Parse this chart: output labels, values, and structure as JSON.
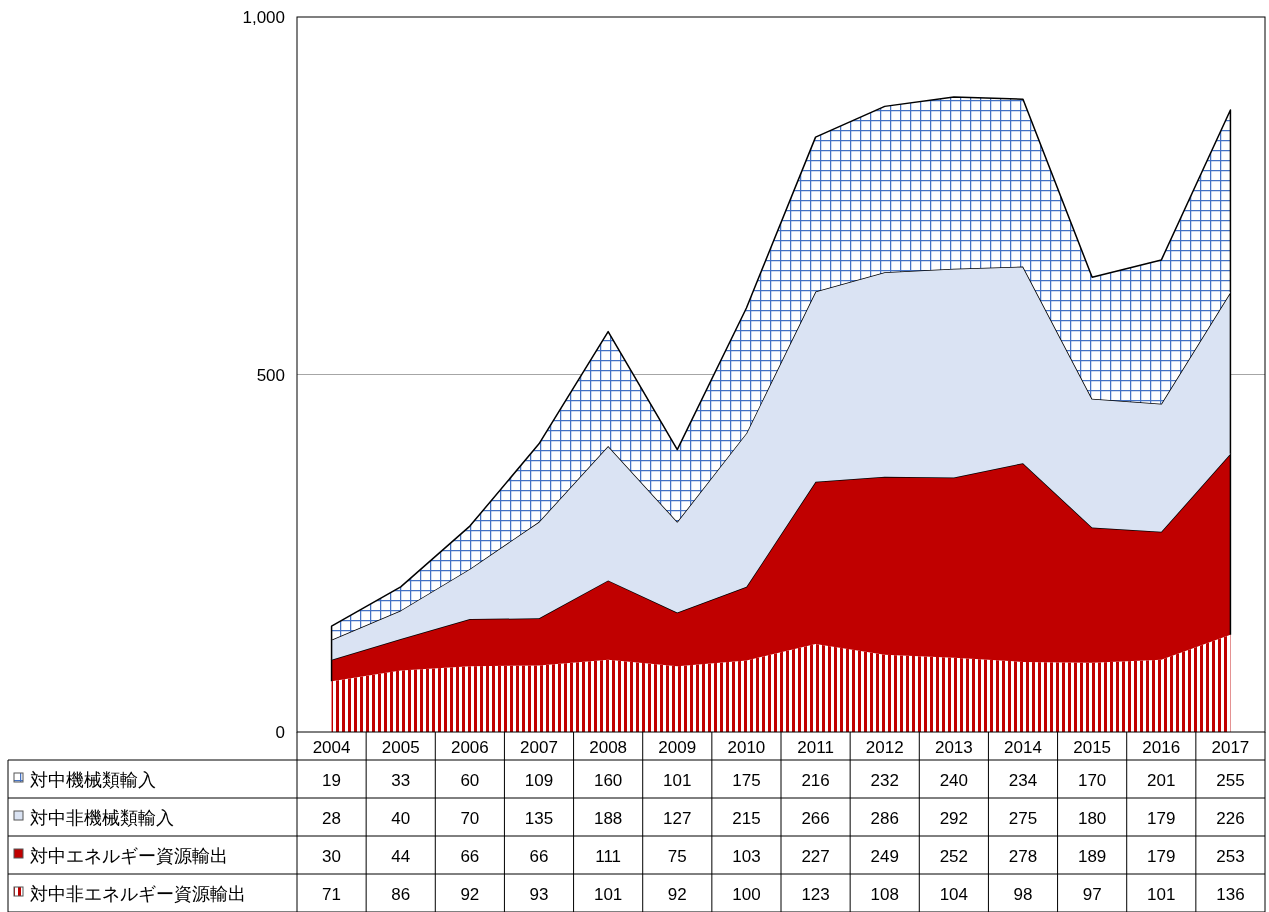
{
  "chart_data": {
    "type": "area",
    "stacked": true,
    "data_labels": true,
    "grid": "y",
    "legend": "bottom",
    "categories": [
      "2004",
      "2005",
      "2006",
      "2007",
      "2008",
      "2009",
      "2010",
      "2011",
      "2012",
      "2013",
      "2014",
      "2015",
      "2016",
      "2017"
    ],
    "ylim": [
      0,
      1000
    ],
    "yticks": [
      0,
      500,
      {
        "value": 1000,
        "label": "1,000"
      }
    ],
    "series": [
      {
        "name": "対中非エネルギー資源輸出",
        "color": "#c00000",
        "values": [
          71,
          86,
          92,
          93,
          101,
          92,
          100,
          123,
          108,
          104,
          98,
          97,
          101,
          136
        ]
      },
      {
        "name": "対中エネルギー資源輸出",
        "color": "#c00000",
        "values": [
          30,
          44,
          66,
          66,
          111,
          75,
          103,
          227,
          249,
          252,
          278,
          189,
          179,
          253
        ]
      },
      {
        "name": "対中非機械類輸入",
        "color": "#dae3f3",
        "values": [
          28,
          40,
          70,
          135,
          188,
          127,
          215,
          266,
          286,
          292,
          275,
          180,
          179,
          226
        ]
      },
      {
        "name": "対中機械類輸入",
        "color": "#4472c4",
        "values": [
          19,
          33,
          60,
          109,
          160,
          101,
          175,
          216,
          232,
          240,
          234,
          170,
          201,
          255
        ]
      }
    ]
  }
}
